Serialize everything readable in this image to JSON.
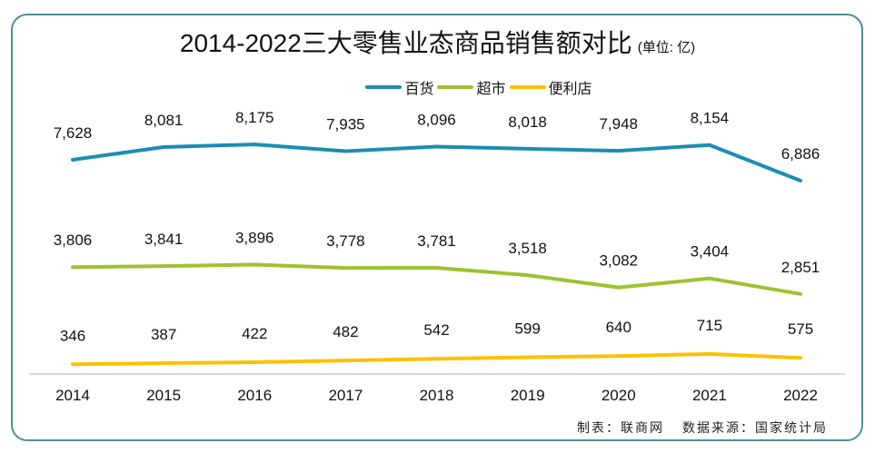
{
  "chart_data": {
    "type": "line",
    "title": "2014-2022三大零售业态商品销售额对比",
    "unit_note": "(单位: 亿)",
    "xlabel": "",
    "ylabel": "",
    "x": [
      "2014",
      "2015",
      "2016",
      "2017",
      "2018",
      "2019",
      "2020",
      "2021",
      "2022"
    ],
    "ylim": [
      0,
      7628
    ],
    "grid": false,
    "legend_position": "top-center",
    "series": [
      {
        "name": "百货",
        "color": "#1b8db3",
        "values": [
          7628,
          8081,
          8175,
          7935,
          8096,
          8018,
          7948,
          8154,
          6886
        ],
        "labels": [
          "7,628",
          "8,081",
          "8,175",
          "7,935",
          "8,096",
          "8,018",
          "7,948",
          "8,154",
          "6,886"
        ]
      },
      {
        "name": "超市",
        "color": "#9cc32f",
        "values": [
          3806,
          3841,
          3896,
          3778,
          3781,
          3518,
          3082,
          3404,
          2851
        ],
        "labels": [
          "3,806",
          "3,841",
          "3,896",
          "3,778",
          "3,781",
          "3,518",
          "3,082",
          "3,404",
          "2,851"
        ]
      },
      {
        "name": "便利店",
        "color": "#ffc000",
        "values": [
          346,
          387,
          422,
          482,
          542,
          599,
          640,
          715,
          575
        ],
        "labels": [
          "346",
          "387",
          "422",
          "482",
          "542",
          "599",
          "640",
          "715",
          "575"
        ]
      }
    ]
  },
  "footer": {
    "maker": "制表：联商网",
    "source": "数据来源：国家统计局"
  },
  "colors": {
    "frame": "#4e8f8f",
    "axis": "#d9d9d9"
  }
}
